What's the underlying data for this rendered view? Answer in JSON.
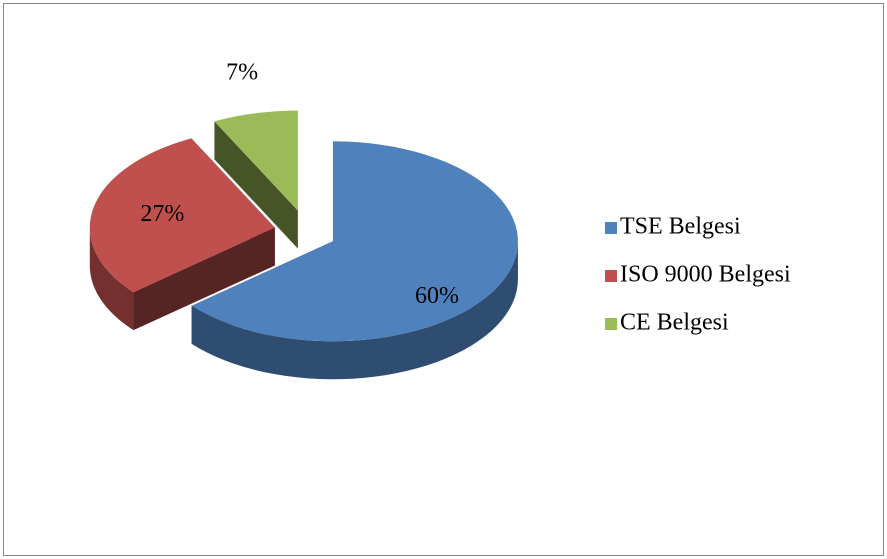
{
  "chart_data": {
    "type": "pie",
    "categories": [
      "TSE Belgesi",
      "ISO 9000 Belgesi",
      "CE Belgesi"
    ],
    "values": [
      60,
      27,
      7
    ],
    "value_labels": [
      "60%",
      "27%",
      "7%"
    ],
    "colors": [
      "#4f81bd",
      "#c0504d",
      "#9bbb59"
    ],
    "legend": "right"
  }
}
